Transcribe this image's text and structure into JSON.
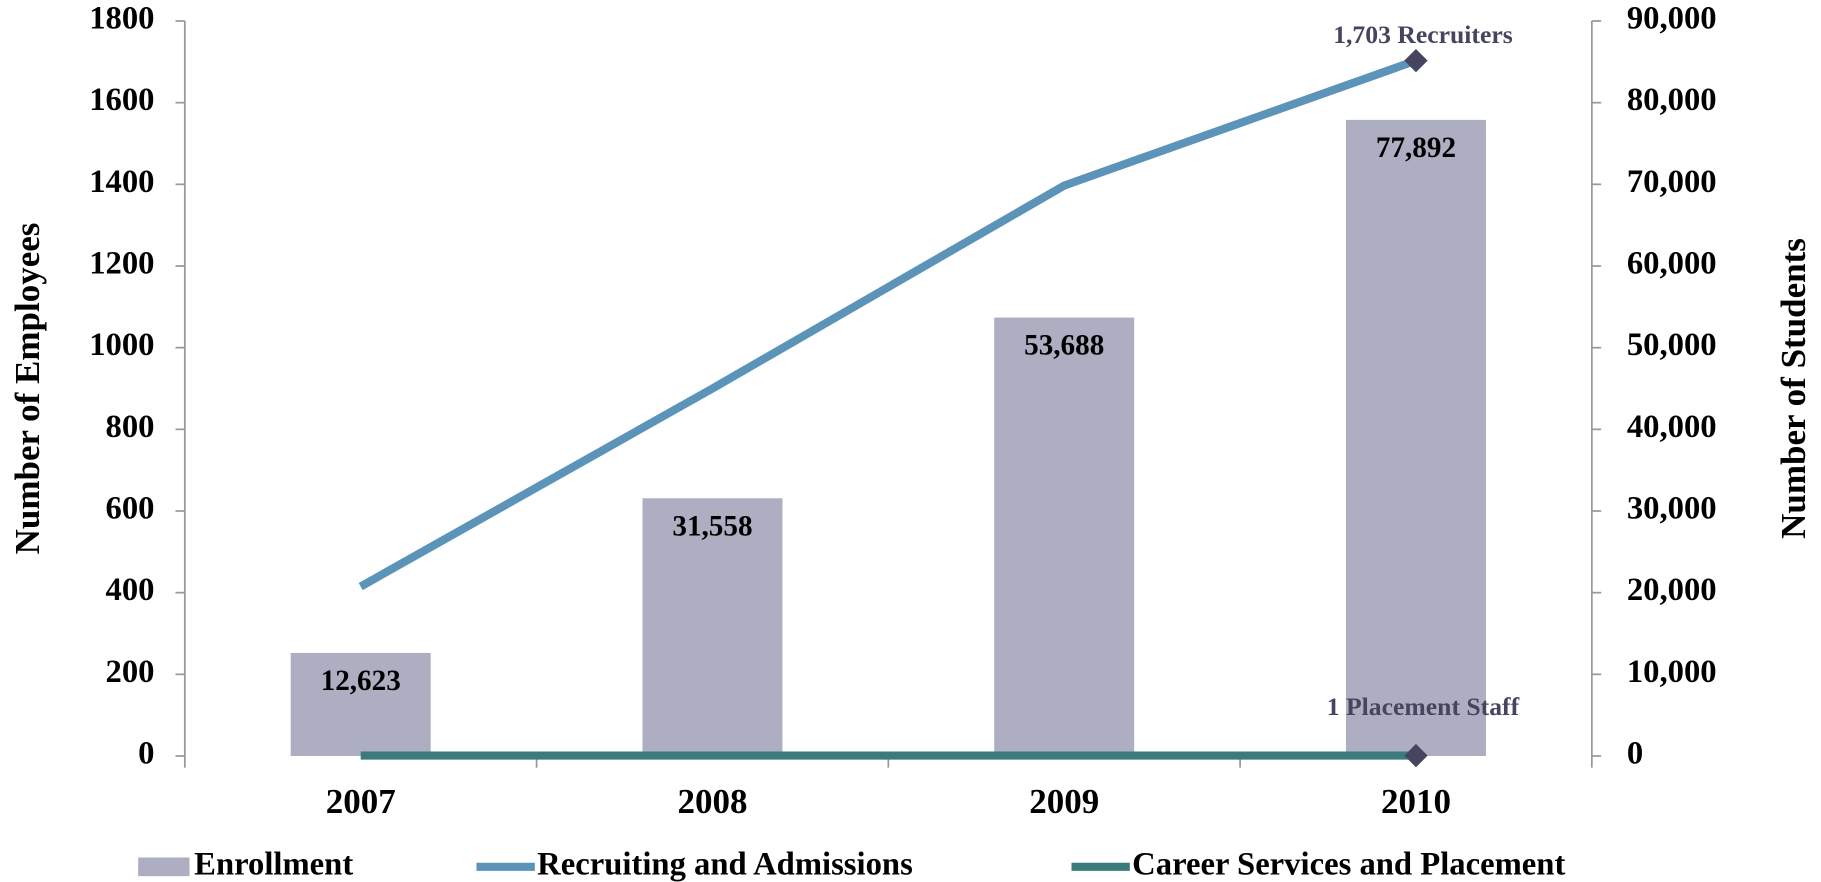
{
  "chart_data": {
    "type": "bar",
    "categories": [
      "2007",
      "2008",
      "2009",
      "2010"
    ],
    "series": [
      {
        "name": "Enrollment",
        "type": "bar",
        "axis": "y2",
        "color": "#aeaec2",
        "values": [
          12623,
          31558,
          53688,
          77892
        ],
        "value_labels": [
          "12,623",
          "31,558",
          "53,688",
          "77,892"
        ]
      },
      {
        "name": "Recruiting and Admissions",
        "type": "line",
        "color": "#5b93b9",
        "values": [
          415,
          900,
          1397,
          1703
        ]
      },
      {
        "name": "Career Services and Placement",
        "type": "line",
        "color": "#3b7b7b",
        "values": [
          1,
          1,
          1,
          1
        ]
      }
    ],
    "annotations": [
      "1,703 Recruiters",
      "1 Placement Staff"
    ],
    "ylabel": "Number of Employees",
    "y2label": "Number of Students",
    "ylim": [
      0,
      1800
    ],
    "yticks": [
      0,
      200,
      400,
      600,
      800,
      1000,
      1200,
      1400,
      1600,
      1800
    ],
    "y2lim": [
      0,
      90000
    ],
    "y2ticks": [
      0,
      {
        "value": 10000,
        "label": "10,000"
      },
      {
        "value": 20000,
        "label": "20,000"
      },
      {
        "value": 30000,
        "label": "30,000"
      },
      {
        "value": 40000,
        "label": "40,000"
      },
      {
        "value": 50000,
        "label": "50,000"
      },
      {
        "value": 60000,
        "label": "60,000"
      },
      {
        "value": 70000,
        "label": "70,000"
      },
      {
        "value": 80000,
        "label": "80,000"
      },
      {
        "value": 90000,
        "label": "90,000"
      }
    ],
    "marker_color": "#454560",
    "legend": "bottom"
  }
}
